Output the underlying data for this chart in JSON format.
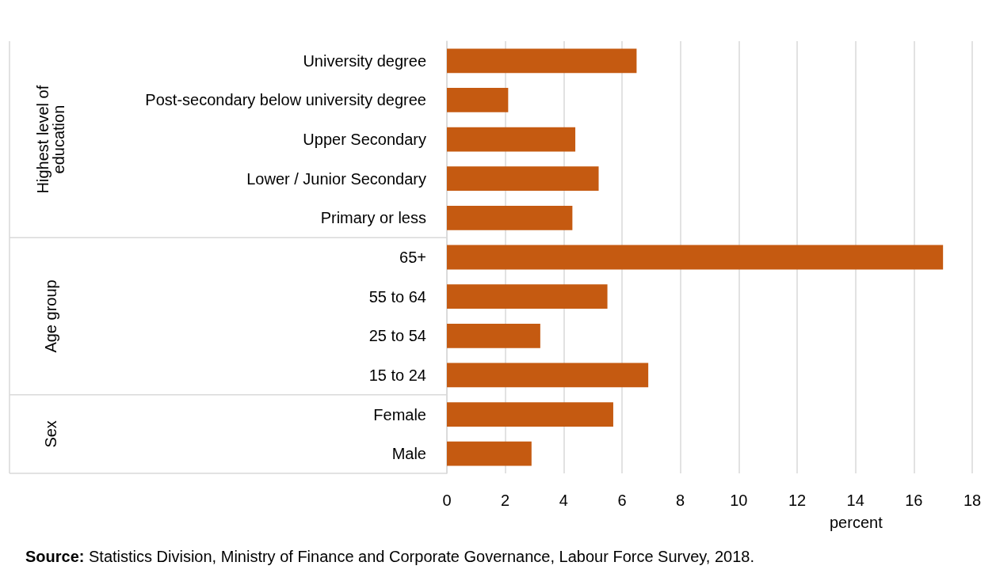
{
  "chart_data": {
    "type": "bar",
    "orientation": "horizontal",
    "xlabel": "percent",
    "categories": [
      "University degree",
      "Post-secondary below university degree",
      "Upper Secondary",
      "Lower / Junior Secondary",
      "Primary or less",
      "65+",
      "55 to 64",
      "25 to 54",
      "15 to 24",
      "Female",
      "Male"
    ],
    "values": [
      6.5,
      2.1,
      4.4,
      5.2,
      4.3,
      17.0,
      5.5,
      3.2,
      6.9,
      5.7,
      2.9
    ],
    "color": "#c55a11",
    "xlim": [
      0,
      18
    ],
    "xticks": [
      0,
      2,
      4,
      6,
      8,
      10,
      12,
      14,
      16,
      18
    ],
    "grid": "x",
    "annotations": [
      "Highest level of\neducation",
      "Age group",
      "Sex",
      "Source: Statistics Division, Ministry of Finance and Corporate Governance, Labour Force Survey, 2018."
    ]
  }
}
